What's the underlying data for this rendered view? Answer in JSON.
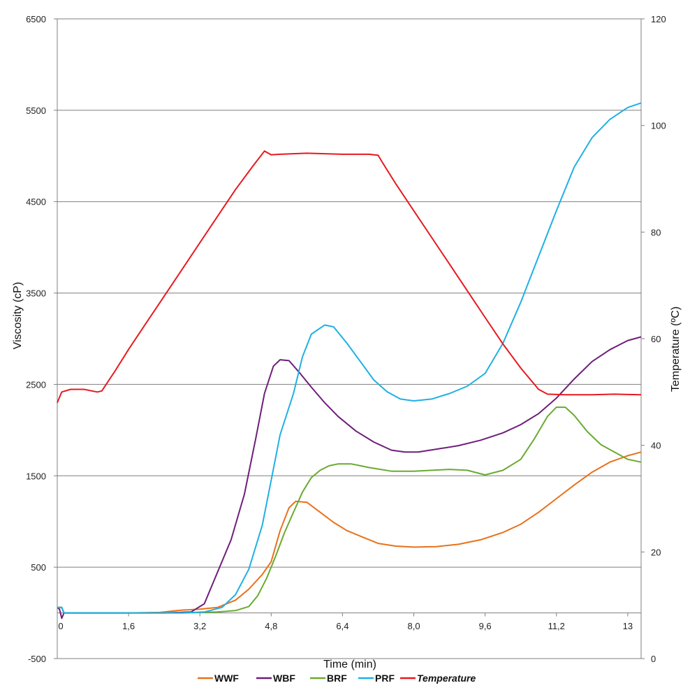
{
  "chart_data": {
    "type": "line",
    "title": "",
    "xlabel": "Time (min)",
    "ylabel": "Viscosity (cP)",
    "y2label": "Temperature (ºC)",
    "xlim": [
      0,
      13.1
    ],
    "ylim": [
      -500,
      6500
    ],
    "y2lim": [
      0,
      120
    ],
    "x_tick_labels": [
      "0",
      "1,6",
      "3,2",
      "4,8",
      "6,4",
      "8,0",
      "9,6",
      "11,2",
      "13"
    ],
    "x_tick_values": [
      0,
      1.6,
      3.2,
      4.8,
      6.4,
      8.0,
      9.6,
      11.2,
      12.8
    ],
    "y_ticks": [
      -500,
      500,
      1500,
      2500,
      3500,
      4500,
      5500,
      6500
    ],
    "y_tick_labels": [
      "-500",
      "500",
      "1500",
      "2500",
      "3500",
      "4500",
      "5500",
      "6500"
    ],
    "y2_ticks": [
      0,
      20,
      40,
      60,
      80,
      100,
      120
    ],
    "y2_tick_labels": [
      "0",
      "20",
      "40",
      "60",
      "80",
      "100",
      "120"
    ],
    "grid": "horizontal",
    "legend_position": "bottom",
    "series": [
      {
        "name": "WWF",
        "color": "#E8711C",
        "axis": "left",
        "italic": false,
        "points": [
          [
            0,
            60
          ],
          [
            0.1,
            60
          ],
          [
            0.15,
            0
          ],
          [
            1.6,
            0
          ],
          [
            2.3,
            5
          ],
          [
            2.8,
            30
          ],
          [
            3.2,
            40
          ],
          [
            3.6,
            60
          ],
          [
            4.0,
            140
          ],
          [
            4.3,
            260
          ],
          [
            4.6,
            420
          ],
          [
            4.8,
            560
          ],
          [
            5.0,
            900
          ],
          [
            5.2,
            1150
          ],
          [
            5.35,
            1220
          ],
          [
            5.6,
            1210
          ],
          [
            5.9,
            1100
          ],
          [
            6.2,
            990
          ],
          [
            6.5,
            900
          ],
          [
            6.9,
            820
          ],
          [
            7.2,
            760
          ],
          [
            7.6,
            730
          ],
          [
            8.0,
            720
          ],
          [
            8.5,
            725
          ],
          [
            9.0,
            750
          ],
          [
            9.5,
            800
          ],
          [
            10.0,
            880
          ],
          [
            10.4,
            970
          ],
          [
            10.8,
            1100
          ],
          [
            11.2,
            1250
          ],
          [
            11.6,
            1400
          ],
          [
            12.0,
            1540
          ],
          [
            12.4,
            1650
          ],
          [
            12.8,
            1720
          ],
          [
            13.1,
            1760
          ]
        ]
      },
      {
        "name": "WBF",
        "color": "#6E1F7A",
        "axis": "left",
        "italic": false,
        "points": [
          [
            0,
            60
          ],
          [
            0.05,
            40
          ],
          [
            0.1,
            -60
          ],
          [
            0.15,
            0
          ],
          [
            1.6,
            0
          ],
          [
            2.4,
            0
          ],
          [
            3.0,
            10
          ],
          [
            3.3,
            100
          ],
          [
            3.6,
            450
          ],
          [
            3.9,
            800
          ],
          [
            4.2,
            1300
          ],
          [
            4.45,
            1900
          ],
          [
            4.65,
            2400
          ],
          [
            4.85,
            2700
          ],
          [
            5.0,
            2770
          ],
          [
            5.2,
            2760
          ],
          [
            5.45,
            2620
          ],
          [
            5.7,
            2470
          ],
          [
            6.0,
            2300
          ],
          [
            6.3,
            2150
          ],
          [
            6.7,
            1990
          ],
          [
            7.1,
            1870
          ],
          [
            7.5,
            1780
          ],
          [
            7.8,
            1760
          ],
          [
            8.1,
            1760
          ],
          [
            8.5,
            1790
          ],
          [
            9.0,
            1830
          ],
          [
            9.5,
            1890
          ],
          [
            10.0,
            1970
          ],
          [
            10.4,
            2060
          ],
          [
            10.8,
            2180
          ],
          [
            11.2,
            2350
          ],
          [
            11.6,
            2560
          ],
          [
            12.0,
            2750
          ],
          [
            12.4,
            2880
          ],
          [
            12.8,
            2980
          ],
          [
            13.1,
            3020
          ]
        ]
      },
      {
        "name": "BRF",
        "color": "#6AAA30",
        "axis": "left",
        "italic": false,
        "points": [
          [
            0,
            60
          ],
          [
            0.1,
            60
          ],
          [
            0.15,
            0
          ],
          [
            1.6,
            0
          ],
          [
            2.8,
            0
          ],
          [
            3.6,
            10
          ],
          [
            4.0,
            25
          ],
          [
            4.3,
            70
          ],
          [
            4.5,
            190
          ],
          [
            4.7,
            380
          ],
          [
            4.9,
            620
          ],
          [
            5.1,
            880
          ],
          [
            5.3,
            1100
          ],
          [
            5.5,
            1320
          ],
          [
            5.7,
            1480
          ],
          [
            5.9,
            1560
          ],
          [
            6.1,
            1610
          ],
          [
            6.3,
            1630
          ],
          [
            6.6,
            1630
          ],
          [
            7.0,
            1590
          ],
          [
            7.5,
            1550
          ],
          [
            8.0,
            1550
          ],
          [
            8.4,
            1560
          ],
          [
            8.8,
            1570
          ],
          [
            9.2,
            1560
          ],
          [
            9.6,
            1510
          ],
          [
            10.0,
            1560
          ],
          [
            10.4,
            1680
          ],
          [
            10.7,
            1900
          ],
          [
            11.0,
            2150
          ],
          [
            11.2,
            2250
          ],
          [
            11.4,
            2250
          ],
          [
            11.6,
            2160
          ],
          [
            11.9,
            1980
          ],
          [
            12.2,
            1840
          ],
          [
            12.5,
            1760
          ],
          [
            12.8,
            1680
          ],
          [
            13.1,
            1650
          ]
        ]
      },
      {
        "name": "PRF",
        "color": "#1FB0E4",
        "axis": "left",
        "italic": false,
        "points": [
          [
            0,
            60
          ],
          [
            0.1,
            60
          ],
          [
            0.15,
            0
          ],
          [
            1.6,
            0
          ],
          [
            2.8,
            0
          ],
          [
            3.3,
            10
          ],
          [
            3.7,
            60
          ],
          [
            4.0,
            200
          ],
          [
            4.3,
            480
          ],
          [
            4.6,
            960
          ],
          [
            4.8,
            1450
          ],
          [
            5.0,
            1950
          ],
          [
            5.3,
            2400
          ],
          [
            5.5,
            2800
          ],
          [
            5.7,
            3050
          ],
          [
            6.0,
            3150
          ],
          [
            6.2,
            3130
          ],
          [
            6.5,
            2950
          ],
          [
            6.8,
            2750
          ],
          [
            7.1,
            2550
          ],
          [
            7.4,
            2420
          ],
          [
            7.7,
            2340
          ],
          [
            8.0,
            2320
          ],
          [
            8.4,
            2340
          ],
          [
            8.8,
            2400
          ],
          [
            9.2,
            2480
          ],
          [
            9.6,
            2620
          ],
          [
            10.0,
            2950
          ],
          [
            10.4,
            3400
          ],
          [
            10.8,
            3900
          ],
          [
            11.2,
            4400
          ],
          [
            11.6,
            4880
          ],
          [
            12.0,
            5200
          ],
          [
            12.4,
            5400
          ],
          [
            12.8,
            5530
          ],
          [
            13.1,
            5580
          ]
        ]
      },
      {
        "name": "Temperature",
        "color": "#E8191E",
        "axis": "right",
        "italic": true,
        "points": [
          [
            0,
            48
          ],
          [
            0.1,
            50
          ],
          [
            0.3,
            50.5
          ],
          [
            0.6,
            50.5
          ],
          [
            0.9,
            50
          ],
          [
            1.0,
            50.2
          ],
          [
            1.3,
            54
          ],
          [
            1.6,
            58
          ],
          [
            2.0,
            63
          ],
          [
            2.4,
            68
          ],
          [
            2.8,
            73
          ],
          [
            3.2,
            78
          ],
          [
            3.6,
            83
          ],
          [
            4.0,
            88
          ],
          [
            4.4,
            92.5
          ],
          [
            4.65,
            95.2
          ],
          [
            4.8,
            94.5
          ],
          [
            5.0,
            94.6
          ],
          [
            5.6,
            94.8
          ],
          [
            6.4,
            94.6
          ],
          [
            7.0,
            94.6
          ],
          [
            7.2,
            94.4
          ],
          [
            7.3,
            93
          ],
          [
            7.6,
            89
          ],
          [
            8.0,
            84
          ],
          [
            8.4,
            79
          ],
          [
            8.8,
            74
          ],
          [
            9.2,
            69
          ],
          [
            9.6,
            64
          ],
          [
            10.0,
            59
          ],
          [
            10.4,
            54.5
          ],
          [
            10.8,
            50.5
          ],
          [
            11.0,
            49.6
          ],
          [
            11.4,
            49.5
          ],
          [
            12.0,
            49.5
          ],
          [
            12.5,
            49.6
          ],
          [
            13.1,
            49.5
          ]
        ]
      }
    ]
  }
}
